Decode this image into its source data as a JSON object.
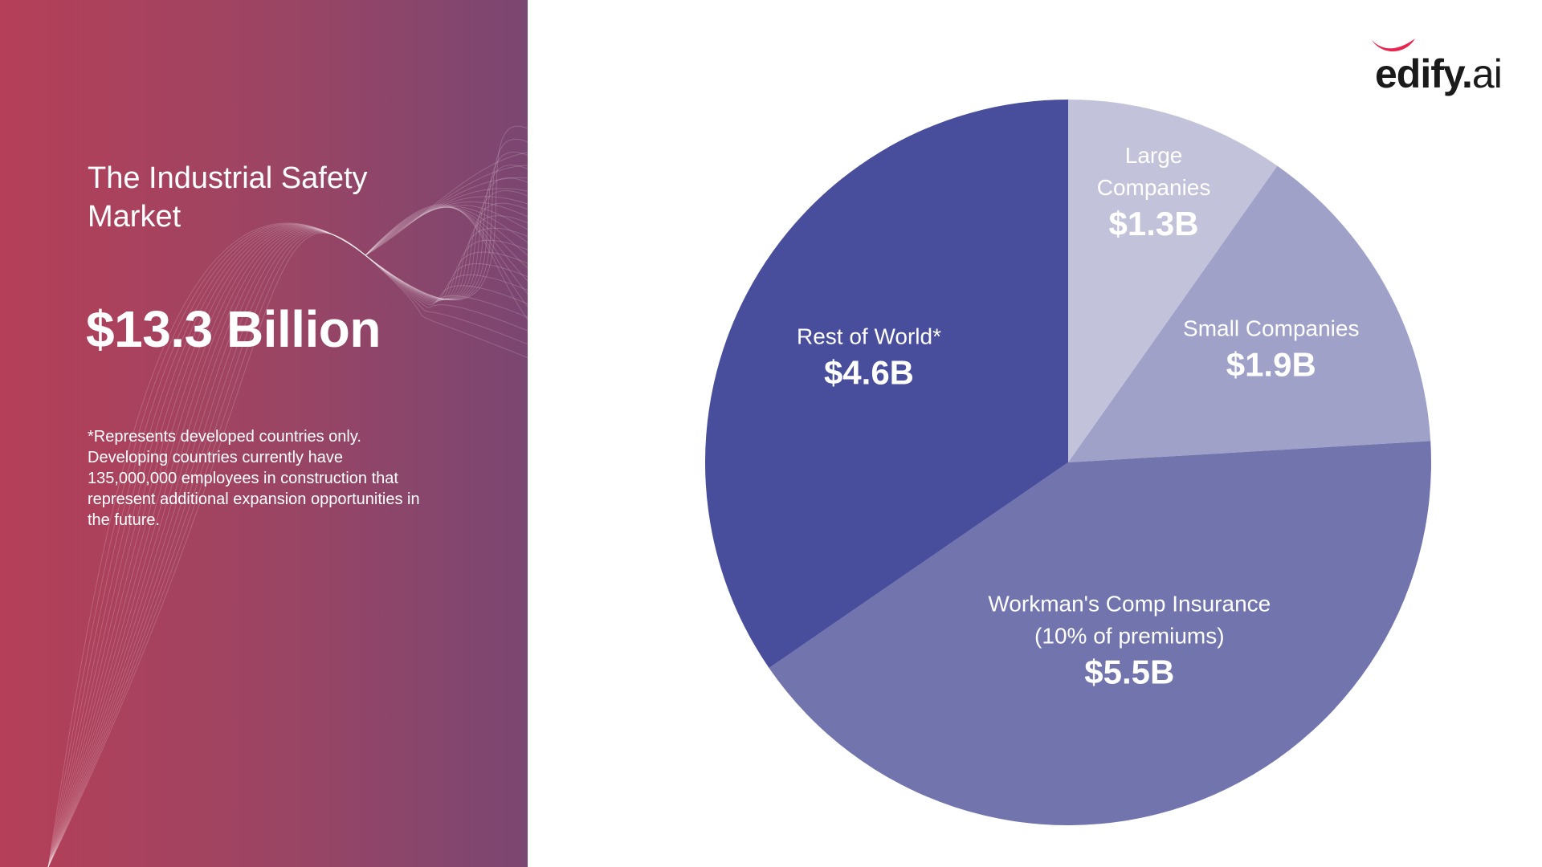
{
  "panel": {
    "title": "The Industrial Safety Market",
    "total": "$13.3 Billion",
    "footnote": "*Represents developed countries only. Developing countries currently have 135,000,000 employees in construction that represent additional expansion opportunities in the future."
  },
  "logo": {
    "text_main": "edify",
    "text_dot": ".",
    "text_ai": "ai",
    "mark_color": "#e8254f"
  },
  "chart_data": {
    "type": "pie",
    "start_angle_deg": 0,
    "direction": "clockwise",
    "slices": [
      {
        "label_lines": [
          "Large",
          "Companies"
        ],
        "value_label": "$1.3B",
        "value": 1.3,
        "color": "#c2c3da"
      },
      {
        "label_lines": [
          "Small Companies"
        ],
        "value_label": "$1.9B",
        "value": 1.9,
        "color": "#9fa1c9"
      },
      {
        "label_lines": [
          "Workman's Comp Insurance",
          "(10% of premiums)"
        ],
        "value_label": "$5.5B",
        "value": 5.5,
        "color": "#7274ae"
      },
      {
        "label_lines": [
          "Rest of World*"
        ],
        "value_label": "$4.6B",
        "value": 4.6,
        "color": "#494e9c"
      }
    ]
  }
}
